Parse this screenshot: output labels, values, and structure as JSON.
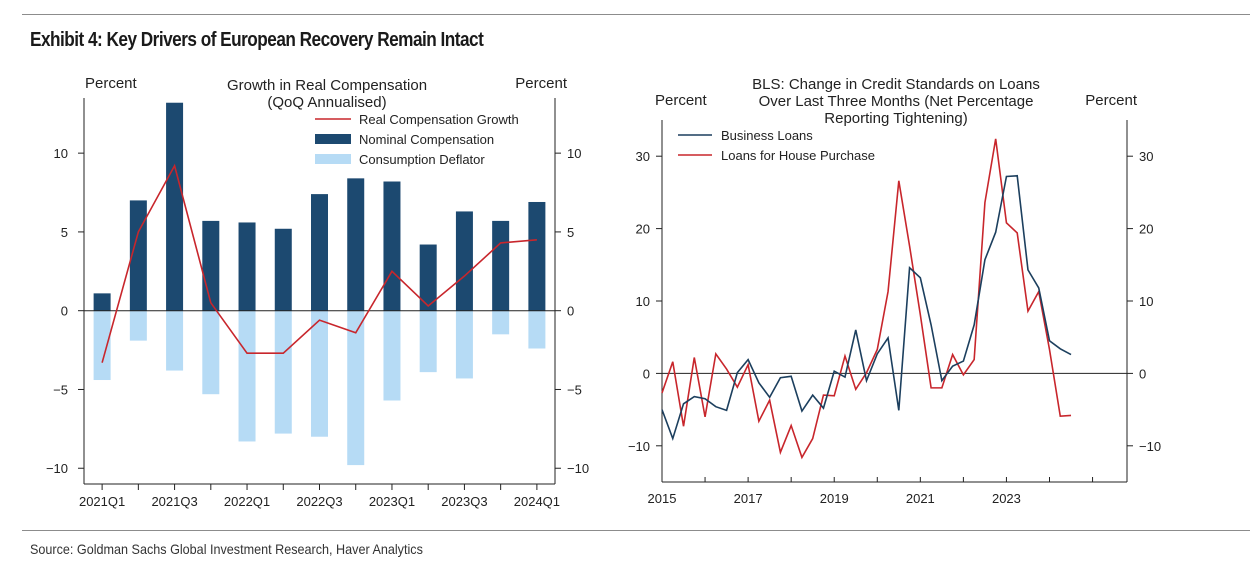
{
  "exhibit": {
    "title": "Exhibit 4: Key Drivers of European Recovery Remain Intact",
    "source": "Source: Goldman Sachs Global Investment Research, Haver Analytics"
  },
  "colors": {
    "nominal": "#1c4970",
    "deflator": "#b6dbf5",
    "real": "#c8262c",
    "business": "#1c3f5e",
    "house": "#c8262c",
    "axis": "#222222",
    "zero": "#222222"
  },
  "chart_data": [
    {
      "type": "bar",
      "title": "Growth in Real Compensation\n(QoQ Annualised)",
      "ylabel_left": "Percent",
      "ylabel_right": "Percent",
      "ylim": [
        -11,
        13.5
      ],
      "yticks": [
        -10,
        -5,
        0,
        5,
        10
      ],
      "xtick_labels": [
        "2021Q1",
        "2021Q3",
        "2022Q1",
        "2022Q3",
        "2023Q1",
        "2023Q3",
        "2024Q1"
      ],
      "categories": [
        "2021Q1",
        "2021Q2",
        "2021Q3",
        "2021Q4",
        "2022Q1",
        "2022Q2",
        "2022Q3",
        "2022Q4",
        "2023Q1",
        "2023Q2",
        "2023Q3",
        "2023Q4",
        "2024Q1"
      ],
      "legend_position": "top-right",
      "series": [
        {
          "name": "Real Compensation Growth",
          "kind": "line",
          "values": [
            -3.3,
            5.0,
            9.2,
            0.5,
            -2.7,
            -2.7,
            -0.6,
            -1.4,
            2.5,
            0.3,
            2.2,
            4.3,
            4.5
          ]
        },
        {
          "name": "Nominal Compensation",
          "kind": "bar",
          "values": [
            1.1,
            7.0,
            13.2,
            5.7,
            5.6,
            5.2,
            7.4,
            8.4,
            8.2,
            4.2,
            6.3,
            5.7,
            6.9
          ]
        },
        {
          "name": "Consumption Deflator",
          "kind": "bar",
          "values": [
            -4.4,
            -1.9,
            -3.8,
            -5.3,
            -8.3,
            -7.8,
            -8.0,
            -9.8,
            -5.7,
            -3.9,
            -4.3,
            -1.5,
            -2.4
          ]
        }
      ]
    },
    {
      "type": "line",
      "title": "BLS: Change in Credit Standards on Loans\nOver Last Three Months (Net Percentage\nReporting Tightening)",
      "ylabel_left": "Percent",
      "ylabel_right": "Percent",
      "ylim": [
        -15,
        35
      ],
      "xlim": [
        2015,
        2025.8
      ],
      "yticks": [
        -10,
        0,
        10,
        20,
        30
      ],
      "xticks": [
        2015,
        2017,
        2019,
        2021,
        2023
      ],
      "legend_position": "top-left",
      "series": [
        {
          "name": "Business Loans",
          "x": [
            2015.0,
            2015.25,
            2015.5,
            2015.75,
            2016.0,
            2016.25,
            2016.5,
            2016.75,
            2017.0,
            2017.25,
            2017.5,
            2017.75,
            2018.0,
            2018.25,
            2018.5,
            2018.75,
            2019.0,
            2019.25,
            2019.5,
            2019.75,
            2020.0,
            2020.25,
            2020.5,
            2020.75,
            2021.0,
            2021.25,
            2021.5,
            2021.75,
            2022.0,
            2022.25,
            2022.5,
            2022.75,
            2023.0,
            2023.25,
            2023.5,
            2023.75,
            2024.0,
            2024.25,
            2024.5
          ],
          "y": [
            -5.0,
            -9.0,
            -4.2,
            -3.2,
            -3.5,
            -4.6,
            -5.1,
            0.1,
            1.9,
            -1.3,
            -3.3,
            -0.6,
            -0.4,
            -5.2,
            -3.0,
            -4.8,
            0.3,
            -0.5,
            6.0,
            -1.0,
            2.7,
            4.9,
            -5.1,
            14.6,
            13.2,
            6.7,
            -1.0,
            1.0,
            1.7,
            6.7,
            15.7,
            19.5,
            27.2,
            27.3,
            14.3,
            11.8,
            4.5,
            3.4,
            2.6
          ]
        },
        {
          "name": "Loans for House Purchase",
          "x": [
            2015.0,
            2015.25,
            2015.5,
            2015.75,
            2016.0,
            2016.25,
            2016.5,
            2016.75,
            2017.0,
            2017.25,
            2017.5,
            2017.75,
            2018.0,
            2018.25,
            2018.5,
            2018.75,
            2019.0,
            2019.25,
            2019.5,
            2019.75,
            2020.0,
            2020.25,
            2020.5,
            2020.75,
            2021.0,
            2021.25,
            2021.5,
            2021.75,
            2022.0,
            2022.25,
            2022.5,
            2022.75,
            2023.0,
            2023.25,
            2023.5,
            2023.75,
            2024.0,
            2024.25,
            2024.5
          ],
          "y": [
            -2.7,
            1.6,
            -7.3,
            2.2,
            -6.0,
            2.7,
            0.6,
            -1.9,
            1.2,
            -6.6,
            -3.7,
            -10.9,
            -7.2,
            -11.6,
            -9.0,
            -3.0,
            -3.1,
            2.4,
            -2.2,
            0.1,
            3.3,
            11.3,
            26.6,
            17.6,
            8.1,
            -2.0,
            -2.0,
            2.6,
            -0.2,
            1.9,
            23.6,
            32.4,
            20.8,
            19.4,
            8.6,
            11.3,
            3.3,
            -5.9,
            -5.8
          ]
        }
      ]
    }
  ]
}
